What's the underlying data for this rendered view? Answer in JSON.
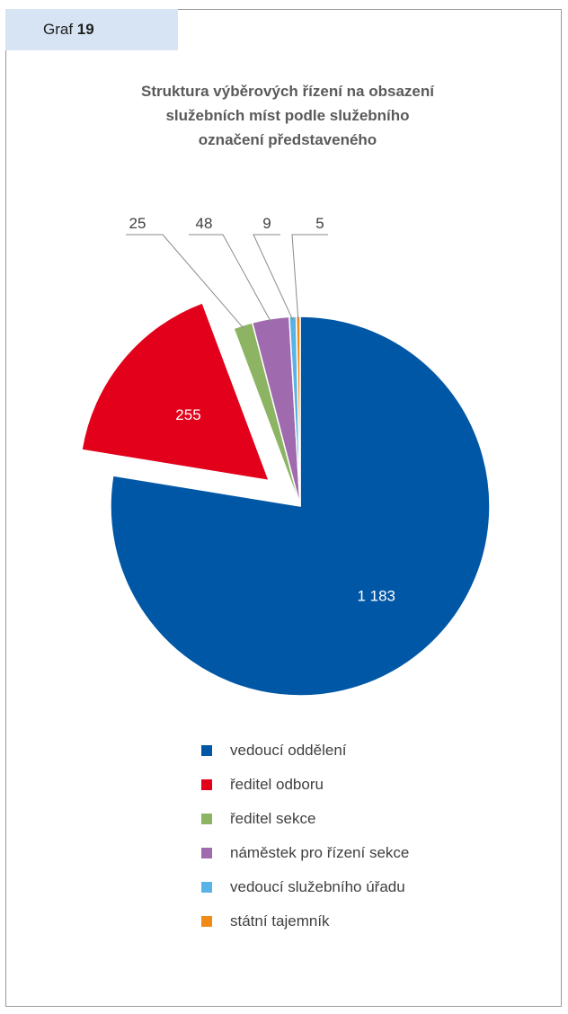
{
  "header": {
    "graf_prefix": "Graf",
    "graf_number": "19"
  },
  "chart_data": {
    "type": "pie",
    "title_lines": [
      "Struktura výběrových řízení na obsazení",
      "služebních míst podle služebního",
      "označení představeného"
    ],
    "slices": [
      {
        "name": "vedoucí oddělení",
        "value": 1183,
        "label": "1 183",
        "color": "#0057A6"
      },
      {
        "name": "ředitel odboru",
        "value": 255,
        "label": "255",
        "color": "#E2001A"
      },
      {
        "name": "ředitel sekce",
        "value": 25,
        "label": "25",
        "color": "#8DB463"
      },
      {
        "name": "náměstek pro řízení sekce",
        "value": 48,
        "label": "48",
        "color": "#9F6AAE"
      },
      {
        "name": "vedoucí služebního úřadu",
        "value": 9,
        "label": "9",
        "color": "#5AB3E6"
      },
      {
        "name": "státní tajemník",
        "value": 5,
        "label": "5",
        "color": "#F28A18"
      }
    ],
    "legend_position": "bottom"
  }
}
